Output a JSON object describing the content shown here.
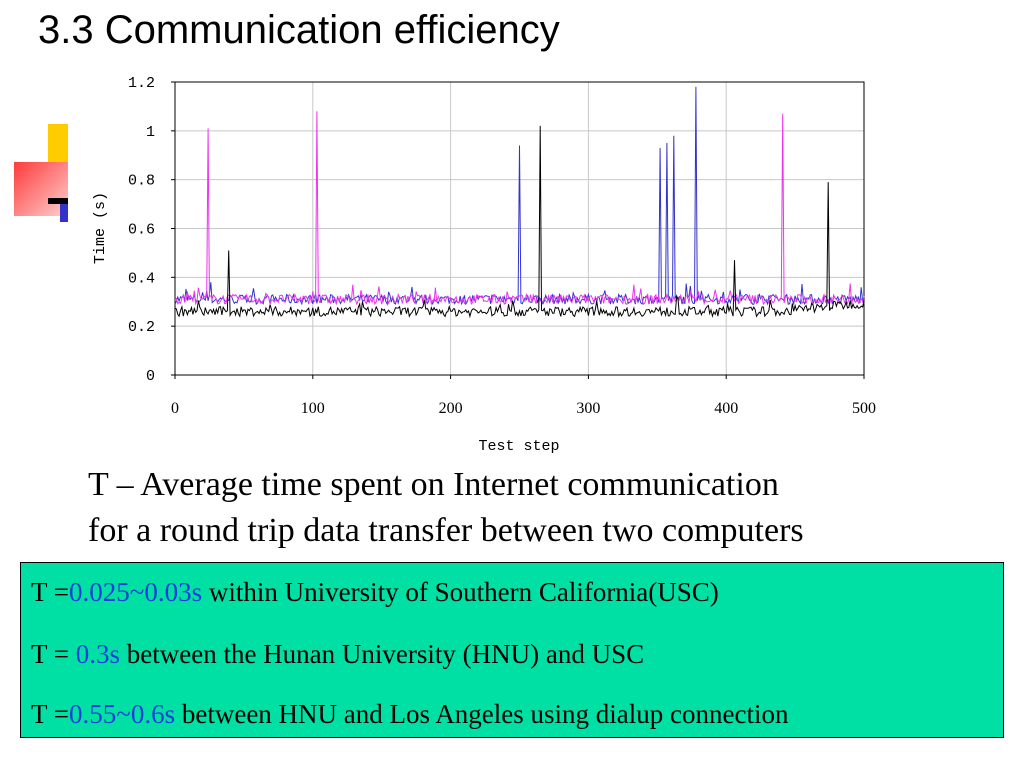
{
  "slide": {
    "title": "3.3 Communication efficiency",
    "description_line1": "T – Average time spent on Internet communication",
    "description_line2": "for a round trip data transfer between two computers"
  },
  "info_box": {
    "rows": [
      {
        "prefix": "T =",
        "value": "0.025~0.03s",
        "text": " within University of Southern California(USC)"
      },
      {
        "prefix": "T = ",
        "value": "0.3s",
        "text": " between the Hunan University (HNU) and USC"
      },
      {
        "prefix": "T =",
        "value": "0.55~0.6s",
        "text": " between HNU and Los Angeles using dialup connection"
      }
    ],
    "colors": {
      "background": "#00e0a4",
      "value": "#1a3fd9"
    }
  },
  "chart_data": {
    "type": "line",
    "title": "",
    "xlabel": "Test step",
    "ylabel": "Time (s)",
    "xlim": [
      0,
      500
    ],
    "ylim": [
      0,
      1.2
    ],
    "xticks": [
      "0",
      "100",
      "200",
      "300",
      "400",
      "500"
    ],
    "yticks": [
      "0",
      "0.2",
      "0.4",
      "0.6",
      "0.8",
      "1",
      "1.2"
    ],
    "grid": true,
    "legend": "none",
    "series": [
      {
        "color": "#3333cc",
        "baseline": 0.31,
        "spikes": [
          [
            26,
            0.38
          ],
          [
            250,
            0.94
          ],
          [
            352,
            0.93
          ],
          [
            357,
            0.95
          ],
          [
            362,
            0.98
          ],
          [
            378,
            1.18
          ],
          [
            410,
            0.35
          ]
        ]
      },
      {
        "color": "#ee33ee",
        "baseline": 0.31,
        "spikes": [
          [
            24,
            1.01
          ],
          [
            103,
            1.08
          ],
          [
            333,
            0.37
          ],
          [
            441,
            1.07
          ]
        ]
      },
      {
        "color": "#000000",
        "baseline": 0.26,
        "spikes": [
          [
            39,
            0.51
          ],
          [
            265,
            1.02
          ],
          [
            406,
            0.47
          ],
          [
            474,
            0.79
          ]
        ]
      }
    ]
  }
}
